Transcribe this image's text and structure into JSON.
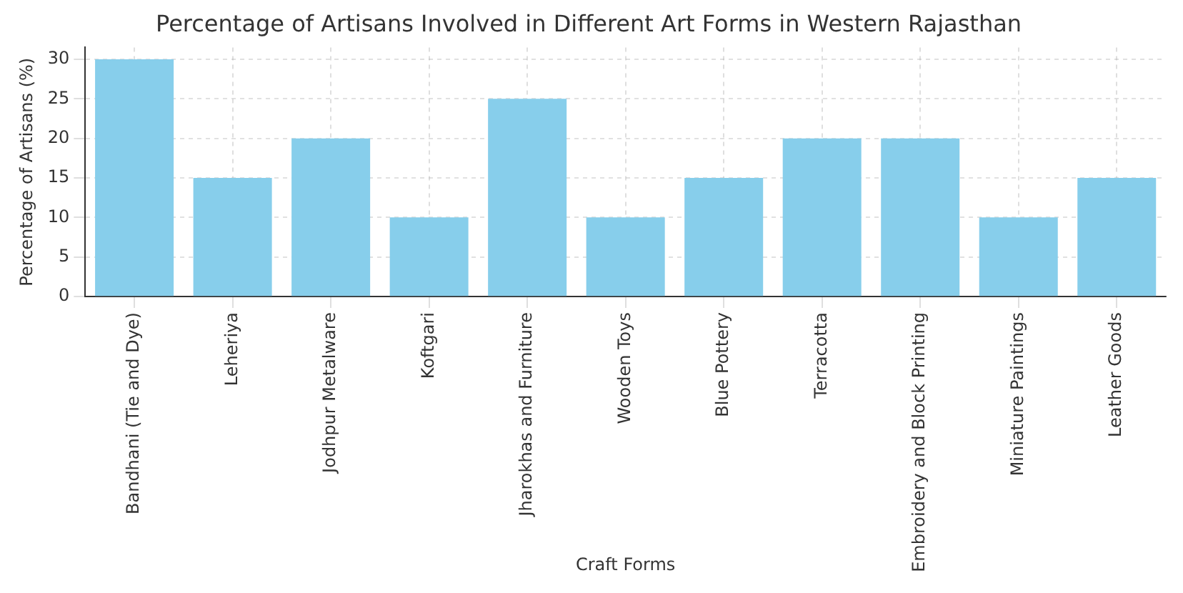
{
  "chart_data": {
    "type": "bar",
    "title": "Percentage of Artisans Involved in Different Art Forms in Western Rajasthan",
    "xlabel": "Craft Forms",
    "ylabel": "Percentage of Artisans (%)",
    "categories": [
      "Bandhani (Tie and Dye)",
      "Leheriya",
      "Jodhpur Metalware",
      "Koftgari",
      "Jharokhas and Furniture",
      "Wooden Toys",
      "Blue Pottery",
      "Terracotta",
      "Embroidery and Block Printing",
      "Miniature Paintings",
      "Leather Goods"
    ],
    "values": [
      30,
      15,
      20,
      10,
      25,
      10,
      15,
      20,
      20,
      10,
      15
    ],
    "color": "#87ceeb",
    "ylim": [
      0,
      31.5
    ],
    "yticks": [
      0,
      5,
      10,
      15,
      20,
      25,
      30
    ],
    "grid": true
  }
}
